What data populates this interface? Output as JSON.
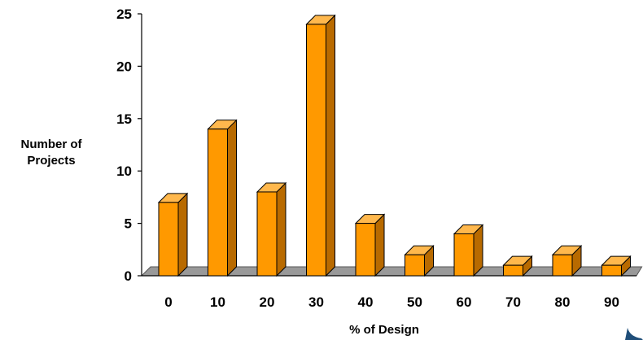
{
  "chart_data": {
    "type": "bar",
    "title": "",
    "xlabel": "% of Design",
    "ylabel_lines": [
      "Number of",
      "Projects"
    ],
    "categories": [
      "0",
      "10",
      "20",
      "30",
      "40",
      "50",
      "60",
      "70",
      "80",
      "90"
    ],
    "values": [
      7,
      14,
      8,
      24,
      5,
      2,
      4,
      1,
      2,
      1
    ],
    "ylim": [
      0,
      25
    ],
    "yticks": [
      "0",
      "5",
      "10",
      "15",
      "20",
      "25"
    ],
    "grid": false,
    "legend": "none",
    "colors": {
      "bar_front": "#FF9900",
      "bar_top": "#FFB84D",
      "bar_side": "#B86A00",
      "bar_stroke": "#000000",
      "floor": "#999999"
    }
  }
}
